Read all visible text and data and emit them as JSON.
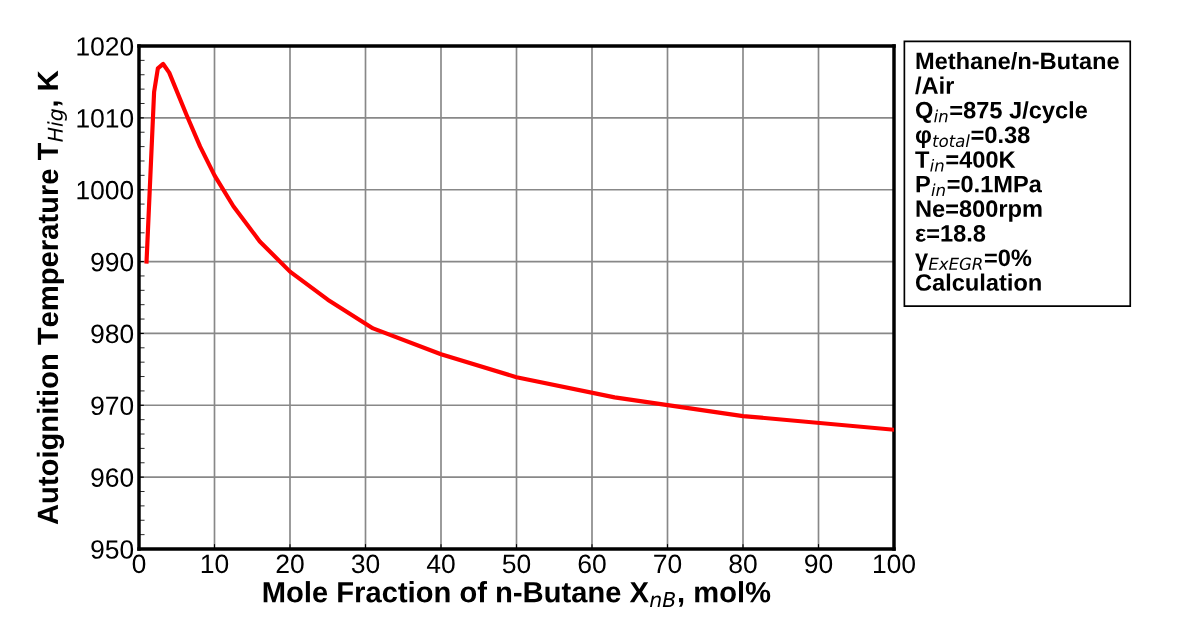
{
  "chart_data": {
    "type": "line",
    "xlabel": "Mole Fraction of n-Butane X$_{nB}$, mol%",
    "ylabel": "Autoignition Temperature T$_{Hig}$, K",
    "x": [
      1,
      2,
      2.5,
      3.2,
      4,
      6.3,
      8.1,
      10,
      12.5,
      16,
      20,
      25,
      31,
      40,
      50,
      63,
      80,
      100
    ],
    "series": [
      {
        "color": "#ff0000",
        "values": [
          990,
          1013.6,
          1016.9,
          1017.5,
          1016.3,
          1010.4,
          1006,
          1002,
          997.7,
          992.8,
          988.6,
          984.7,
          980.7,
          977.1,
          973.9,
          971.1,
          968.5,
          966.6
        ]
      }
    ],
    "xlim": [
      0,
      100
    ],
    "xticks": [
      0,
      10,
      20,
      30,
      40,
      50,
      60,
      70,
      80,
      90,
      100
    ],
    "ylim": [
      950,
      1020
    ],
    "yticks": [
      950,
      960,
      970,
      980,
      990,
      1000,
      1010,
      1020
    ],
    "grid": true,
    "marker": "none",
    "line_style": "solid",
    "annotations": [
      "Methane/n-Butane\n/Air\nQ$_{in}$=875 J/cycle\nφ$_{total}$=0.38\nT$_{in}$=400K\nP$_{in}$=0.1MPa\nNe=800rpm\nε=18.8\nγ$_{ExEGR}$=0%\nCalculation"
    ]
  }
}
